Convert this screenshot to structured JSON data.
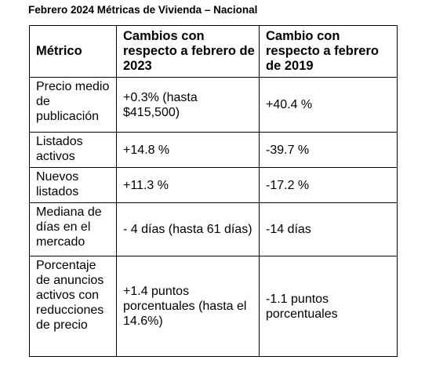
{
  "document": {
    "title": "Febrero 2024 Métricas de Vivienda – Nacional"
  },
  "table": {
    "headers": [
      "Métrico",
      "Cambios con respecto a febrero de 2023",
      "Cambio con respecto a febrero de 2019"
    ],
    "rows": [
      {
        "metric": "Precio medio de publicación",
        "vs_2023": "+0.3% (hasta $415,500)",
        "vs_2019": "+40.4 %"
      },
      {
        "metric": "Listados activos",
        "vs_2023": "+14.8 %",
        "vs_2019": "-39.7 %"
      },
      {
        "metric": "Nuevos listados",
        "vs_2023": "+11.3 %",
        "vs_2019": "-17.2 %"
      },
      {
        "metric": "Mediana de días en el mercado",
        "vs_2023": "- 4 días (hasta 61 días)",
        "vs_2019": "-14 días"
      },
      {
        "metric": "Porcentaje de anuncios activos con reducciones de precio",
        "vs_2023": "+1.4 puntos porcentuales (hasta el 14.6%)",
        "vs_2019": "-1.1 puntos porcentuales"
      }
    ]
  }
}
